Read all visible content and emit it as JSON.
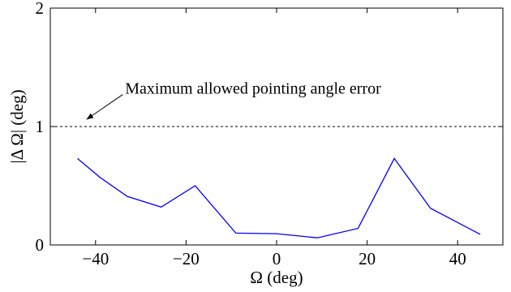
{
  "chart_data": {
    "type": "line",
    "xlabel": "Ω (deg)",
    "ylabel": "|Δ Ω| (deg)",
    "xlim": [
      -50,
      50
    ],
    "ylim": [
      0,
      2
    ],
    "xticks": [
      -40,
      -20,
      0,
      20,
      40
    ],
    "xtick_labels": [
      "−40",
      "−20",
      "0",
      "20",
      "40"
    ],
    "yticks": [
      0,
      1,
      2
    ],
    "ytick_labels": [
      "0",
      "1",
      "2"
    ],
    "grid": false,
    "legend": "none",
    "series": [
      {
        "color": "#0000ff",
        "x": [
          -44,
          -39,
          -33,
          -25.5,
          -18,
          -9,
          0,
          9,
          18,
          26,
          34,
          40,
          45
        ],
        "y": [
          0.73,
          0.57,
          0.41,
          0.32,
          0.5,
          0.1,
          0.095,
          0.06,
          0.14,
          0.73,
          0.31,
          0.19,
          0.09
        ]
      }
    ],
    "reference_line": {
      "y": 1,
      "style": "dashed",
      "color": "#000000"
    },
    "annotation": {
      "text": "Maximum allowed pointing angle error",
      "arrow_from": [
        -34,
        1.27
      ],
      "arrow_to": [
        -42,
        1.06
      ]
    }
  }
}
